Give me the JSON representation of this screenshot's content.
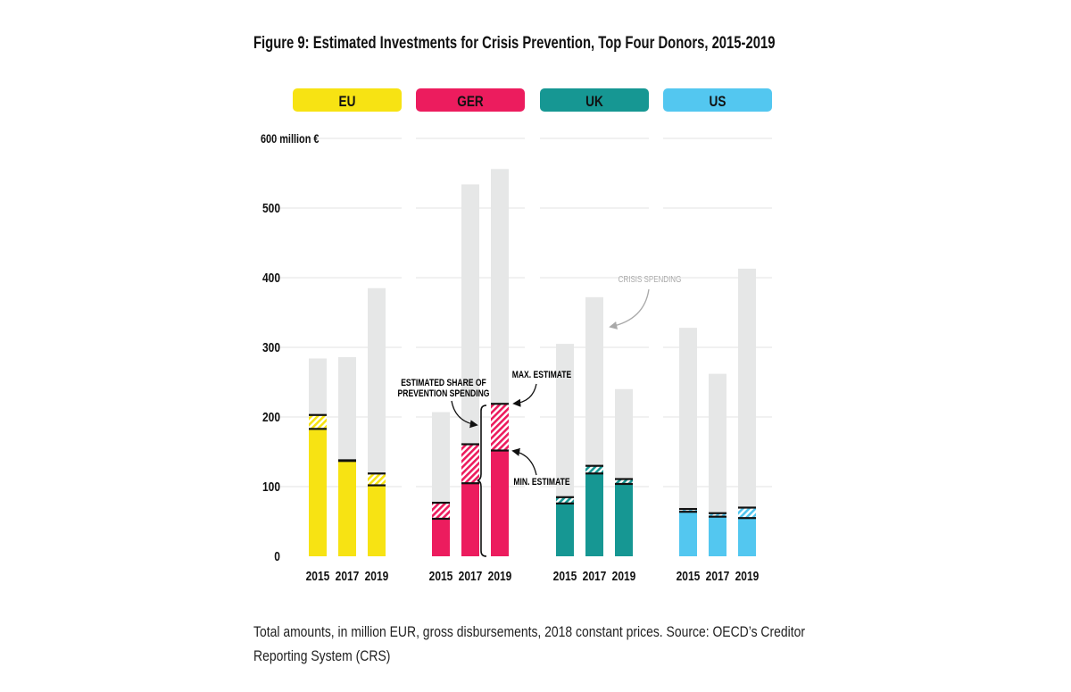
{
  "chart_data": {
    "type": "bar",
    "title": "Figure 9: Estimated Investments for Crisis Prevention, Top Four Donors, 2015-2019",
    "y_unit_label": "600 million €",
    "yticks": [
      "0",
      "100",
      "200",
      "300",
      "400",
      "500"
    ],
    "ylim": [
      0,
      600
    ],
    "grid": true,
    "categories": [
      "2015",
      "2017",
      "2019"
    ],
    "panels": [
      {
        "name": "EU",
        "color": "#f7e313",
        "crisis_spending": [
          284,
          286,
          385
        ],
        "min_estimate": [
          183,
          137,
          102
        ],
        "max_estimate": [
          203,
          138,
          119
        ]
      },
      {
        "name": "GER",
        "color": "#ec1c5e",
        "crisis_spending": [
          207,
          534,
          556
        ],
        "min_estimate": [
          54,
          105,
          152
        ],
        "max_estimate": [
          77,
          161,
          219
        ]
      },
      {
        "name": "UK",
        "color": "#169793",
        "crisis_spending": [
          305,
          372,
          240
        ],
        "min_estimate": [
          76,
          119,
          104
        ],
        "max_estimate": [
          85,
          130,
          111
        ]
      },
      {
        "name": "US",
        "color": "#53c7f0",
        "crisis_spending": [
          328,
          262,
          413
        ],
        "min_estimate": [
          64,
          57,
          55
        ],
        "max_estimate": [
          68,
          62,
          70
        ]
      }
    ],
    "annotations": {
      "crisis_spending": "CRISIS SPENDING",
      "share_line1": "ESTIMATED SHARE OF",
      "share_line2": "PREVENTION SPENDING",
      "max_estimate": "MAX. ESTIMATE",
      "min_estimate": "MIN. ESTIMATE"
    },
    "colors": {
      "crisis": "#e6e7e7",
      "grid": "#e3e3e3",
      "marker": "#111111",
      "annotation_gray": "#a9a9a9"
    }
  },
  "source_note": "Total amounts, in million EUR, gross disbursements, 2018 constant prices. Source: OECD’s Creditor Reporting System (CRS)"
}
